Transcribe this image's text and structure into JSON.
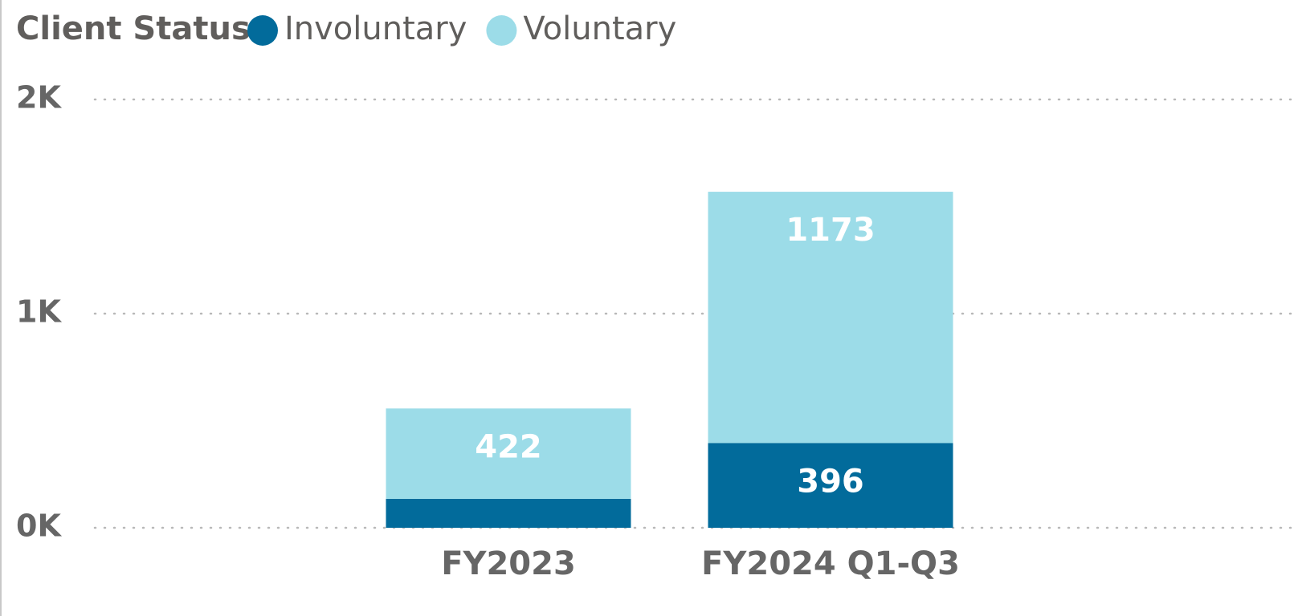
{
  "chart_data": {
    "type": "stacked_bar",
    "legend_title": "Client Status",
    "categories": [
      "FY2023",
      "FY2024 Q1-Q3"
    ],
    "series": [
      {
        "name": "Involuntary",
        "color": "#026b9b",
        "values": [
          135,
          396
        ],
        "value_labels": [
          null,
          "396"
        ]
      },
      {
        "name": "Voluntary",
        "color": "#9cdce8",
        "values": [
          422,
          1173
        ]
      }
    ],
    "ylim": [
      0,
      2000
    ],
    "yticks": [
      {
        "value": 0,
        "label": "0K"
      },
      {
        "value": 1000,
        "label": "1K"
      },
      {
        "value": 2000,
        "label": "2K"
      }
    ],
    "grid": true,
    "legend": "top-left"
  }
}
